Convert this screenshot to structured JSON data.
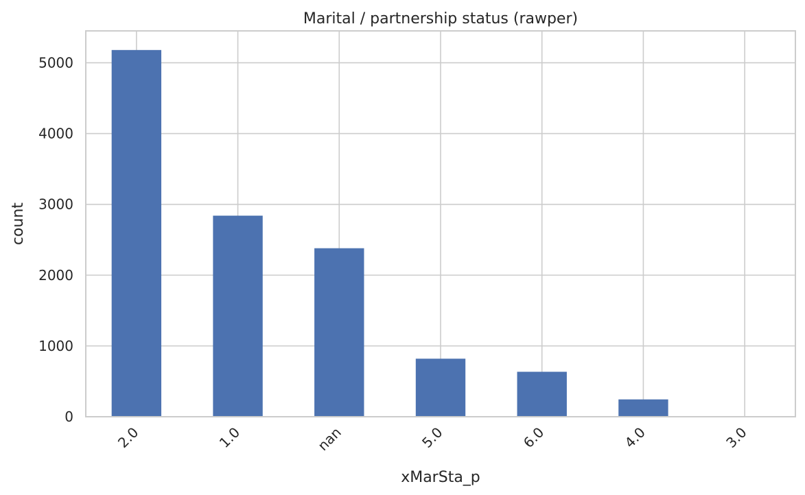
{
  "chart_data": {
    "type": "bar",
    "title": "Marital / partnership status (rawper)",
    "xlabel": "xMarSta_p",
    "ylabel": "count",
    "categories": [
      "2.0",
      "1.0",
      "nan",
      "5.0",
      "6.0",
      "4.0",
      "3.0"
    ],
    "values": [
      5180,
      2840,
      2380,
      820,
      635,
      245,
      8
    ],
    "ylim": [
      0,
      5450
    ],
    "yticks": [
      0,
      1000,
      2000,
      3000,
      4000,
      5000
    ],
    "ytick_labels": [
      "0",
      "1000",
      "2000",
      "3000",
      "4000",
      "5000"
    ],
    "grid": true,
    "bar_color": "#4c72b0",
    "legend": "none"
  }
}
